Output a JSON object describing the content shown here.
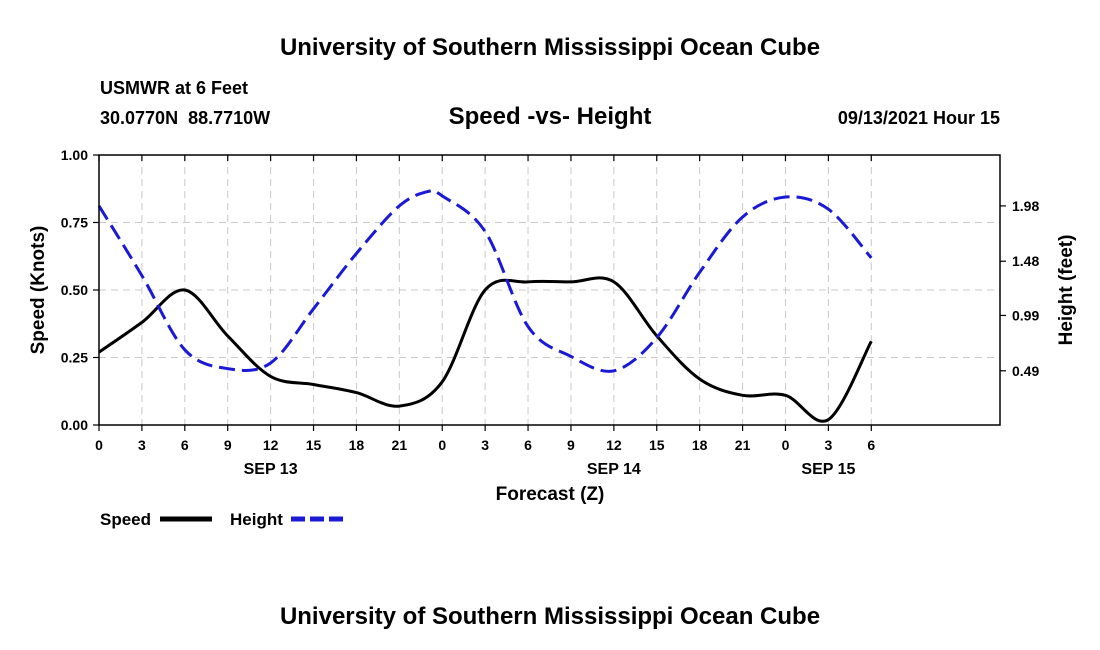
{
  "header": {
    "title_top": "University of Southern Mississippi Ocean Cube",
    "title_bottom": "University of Southern Mississippi Ocean Cube",
    "station_name": "USMWR at 6 Feet",
    "coords": "30.0770N  88.7710W",
    "subtitle": "Speed -vs- Height",
    "datetime": "09/13/2021 Hour 15"
  },
  "colors": {
    "speed": "#000000",
    "height": "#1a1ad6",
    "grid": "#c8c8c8"
  },
  "chart_data": {
    "type": "line",
    "title": "Speed -vs- Height",
    "xlabel": "Forecast (Z)",
    "ylabel": "Speed (Knots)",
    "ylabel_right": "Height (feet)",
    "x_range": [
      0,
      63
    ],
    "ylim": [
      0,
      1
    ],
    "ylim_right": [
      0,
      2.44
    ],
    "grid": true,
    "x_ticks": [
      {
        "x": 0,
        "label": "0"
      },
      {
        "x": 3,
        "label": "3"
      },
      {
        "x": 6,
        "label": "6"
      },
      {
        "x": 9,
        "label": "9"
      },
      {
        "x": 12,
        "label": "12"
      },
      {
        "x": 15,
        "label": "15"
      },
      {
        "x": 18,
        "label": "18"
      },
      {
        "x": 21,
        "label": "21"
      },
      {
        "x": 24,
        "label": "0"
      },
      {
        "x": 27,
        "label": "3"
      },
      {
        "x": 30,
        "label": "6"
      },
      {
        "x": 33,
        "label": "9"
      },
      {
        "x": 36,
        "label": "12"
      },
      {
        "x": 39,
        "label": "15"
      },
      {
        "x": 42,
        "label": "18"
      },
      {
        "x": 45,
        "label": "21"
      },
      {
        "x": 48,
        "label": "0"
      },
      {
        "x": 51,
        "label": "3"
      },
      {
        "x": 54,
        "label": "6"
      }
    ],
    "date_labels": [
      {
        "x": 12,
        "label": "SEP 13"
      },
      {
        "x": 36,
        "label": "SEP 14"
      },
      {
        "x": 51,
        "label": "SEP 15"
      }
    ],
    "y_ticks_left": [
      {
        "v": 0,
        "label": "0.00"
      },
      {
        "v": 0.25,
        "label": "0.25"
      },
      {
        "v": 0.5,
        "label": "0.50"
      },
      {
        "v": 0.75,
        "label": "0.75"
      },
      {
        "v": 1.0,
        "label": "1.00"
      }
    ],
    "y_ticks_right": [
      {
        "v": 0.49,
        "label": "0.49"
      },
      {
        "v": 0.99,
        "label": "0.99"
      },
      {
        "v": 1.48,
        "label": "1.48"
      },
      {
        "v": 1.98,
        "label": "1.98"
      }
    ],
    "series": [
      {
        "name": "Speed",
        "axis": "left",
        "style": "solid",
        "x": [
          0,
          3,
          6,
          9,
          12,
          15,
          18,
          21,
          24,
          27,
          30,
          33,
          36,
          39,
          42,
          45,
          48,
          51,
          54
        ],
        "values": [
          0.27,
          0.38,
          0.5,
          0.33,
          0.18,
          0.15,
          0.12,
          0.07,
          0.16,
          0.5,
          0.53,
          0.53,
          0.53,
          0.33,
          0.17,
          0.11,
          0.11,
          0.02,
          0.31
        ]
      },
      {
        "name": "Height",
        "axis": "right",
        "style": "dashed",
        "x": [
          0,
          3,
          6,
          9,
          12,
          15,
          18,
          21,
          23,
          24,
          27,
          30,
          33,
          36,
          39,
          42,
          45,
          48,
          51,
          54
        ],
        "values": [
          1.98,
          1.35,
          0.68,
          0.51,
          0.56,
          1.05,
          1.55,
          1.98,
          2.11,
          2.07,
          1.75,
          0.89,
          0.62,
          0.49,
          0.79,
          1.38,
          1.88,
          2.06,
          1.95,
          1.51
        ]
      }
    ],
    "legend": [
      {
        "name": "Speed",
        "style": "solid"
      },
      {
        "name": "Height",
        "style": "dashed"
      }
    ],
    "legend_position": "bottom-left"
  }
}
